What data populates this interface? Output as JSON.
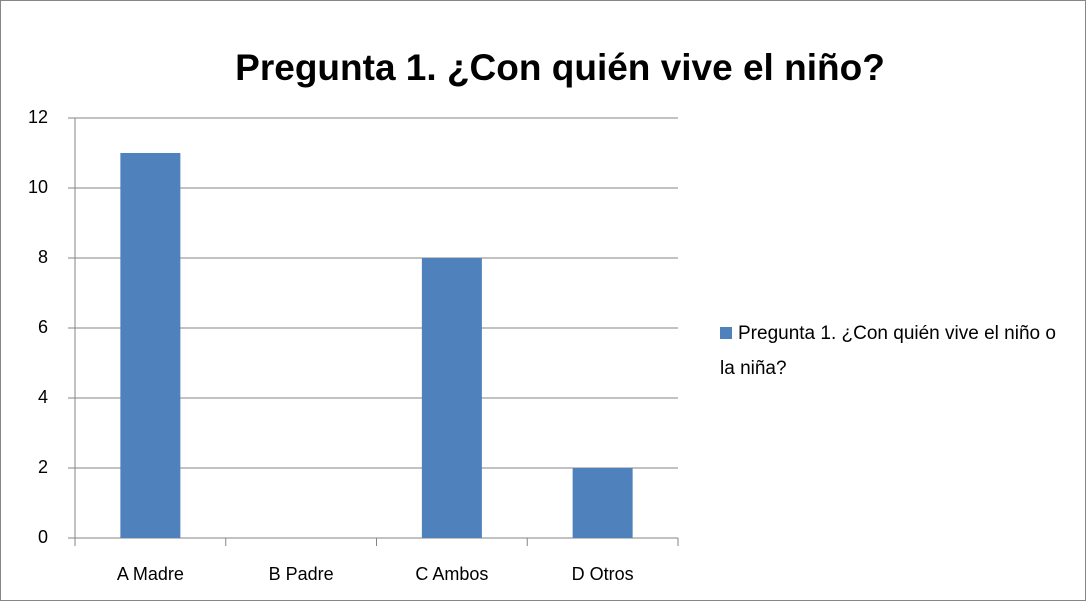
{
  "chart_data": {
    "type": "bar",
    "title": "Pregunta 1. ¿Con quién vive el niño?",
    "categories": [
      "A Madre",
      "B Padre",
      "C Ambos",
      "D Otros"
    ],
    "series": [
      {
        "name": "Pregunta 1. ¿Con quién vive el niño o la niña?",
        "color": "#4f81bd",
        "values": [
          11,
          0,
          8,
          2
        ]
      }
    ],
    "ylim": [
      0,
      12
    ],
    "yticks": [
      0,
      2,
      4,
      6,
      8,
      10,
      12
    ],
    "grid": true,
    "legend": "right"
  }
}
